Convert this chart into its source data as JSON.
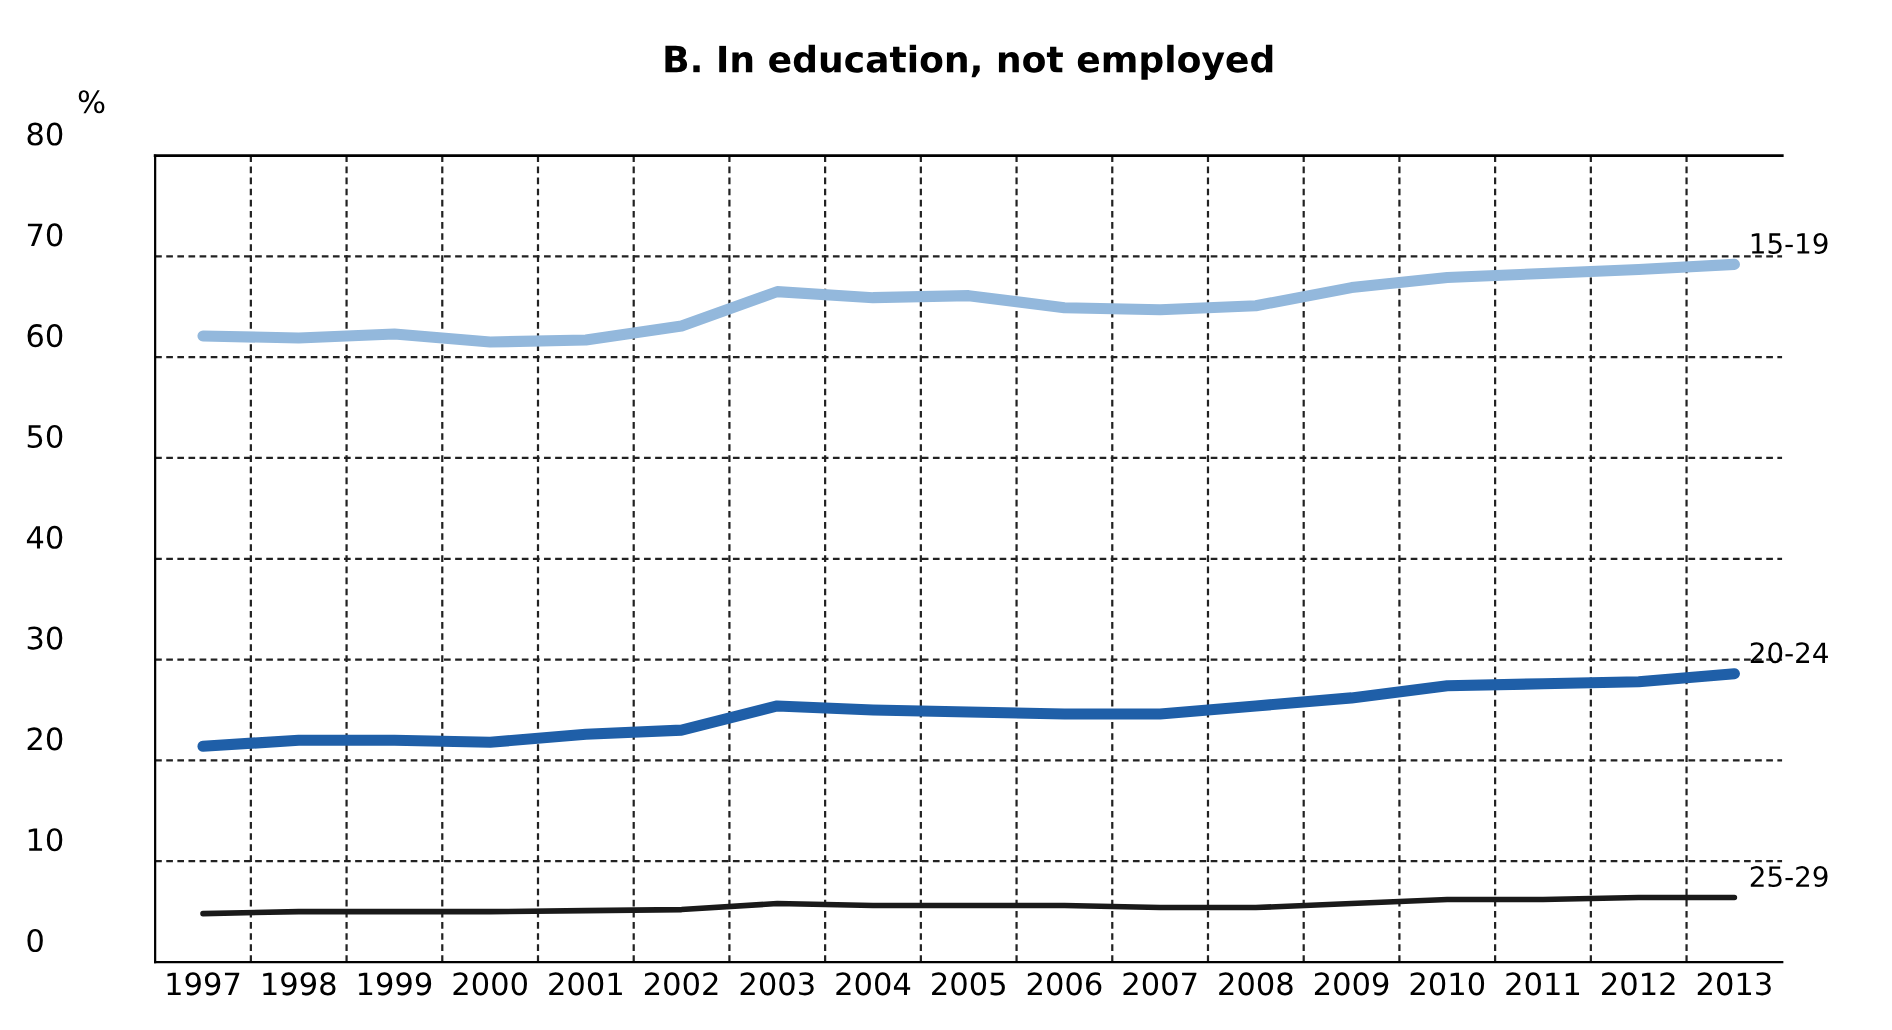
{
  "chart_data": {
    "type": "line",
    "title": "B. In education, not employed",
    "ylabel": "%",
    "categories": [
      "1997",
      "1998",
      "1999",
      "2000",
      "2001",
      "2002",
      "2003",
      "2004",
      "2005",
      "2006",
      "2007",
      "2008",
      "2009",
      "2010",
      "2011",
      "2012",
      "2013"
    ],
    "series": [
      {
        "name": "15-19",
        "color": "#93b8dc",
        "values": [
          62.1,
          61.9,
          62.3,
          61.5,
          61.7,
          63.1,
          66.5,
          65.9,
          66.1,
          64.9,
          64.7,
          65.1,
          66.9,
          67.9,
          68.3,
          68.7,
          69.2
        ]
      },
      {
        "name": "20-24",
        "color": "#1f5fa8",
        "values": [
          21.4,
          22.0,
          22.0,
          21.8,
          22.6,
          23.0,
          25.4,
          25.0,
          24.8,
          24.6,
          24.6,
          25.4,
          26.2,
          27.4,
          27.6,
          27.8,
          28.6
        ]
      },
      {
        "name": "25-29",
        "color": "#1a1a1a",
        "values": [
          4.8,
          5.0,
          5.0,
          5.0,
          5.1,
          5.2,
          5.8,
          5.6,
          5.6,
          5.6,
          5.4,
          5.4,
          5.8,
          6.2,
          6.2,
          6.4,
          6.4
        ]
      }
    ],
    "ylim": [
      0,
      80
    ],
    "yticks": [
      0,
      10,
      20,
      30,
      40,
      50,
      60,
      70,
      80
    ],
    "grid": true,
    "legend": false,
    "line_style": "solid",
    "marker": "none"
  }
}
